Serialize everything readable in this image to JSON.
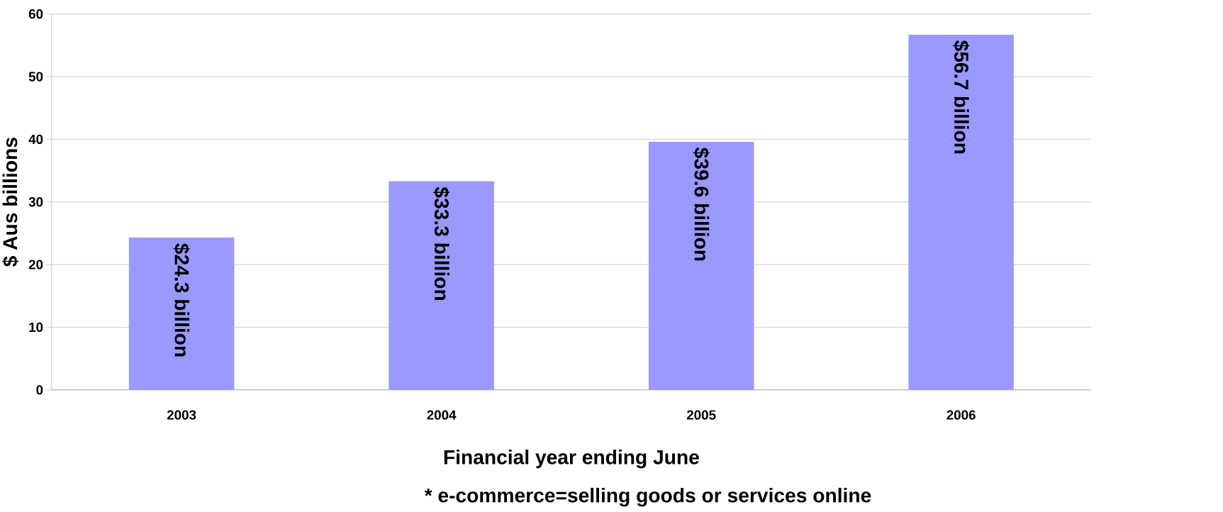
{
  "chart_data": {
    "type": "bar",
    "xlabel": "Financial year ending June",
    "ylabel": "$ Aus billions",
    "annotations": [
      "* e-commerce=selling goods or services online"
    ],
    "categories": [
      "2003",
      "2004",
      "2005",
      "2006"
    ],
    "values": [
      24.3,
      33.3,
      39.6,
      56.7
    ],
    "value_labels": [
      "$24.3 billion",
      "$33.3 billion",
      "$39.6 billion",
      "$56.7 billion"
    ],
    "color": "#9999ff",
    "ylim": [
      0,
      60
    ],
    "yticks": [
      0,
      10,
      20,
      30,
      40,
      50,
      60
    ],
    "grid": "y"
  }
}
